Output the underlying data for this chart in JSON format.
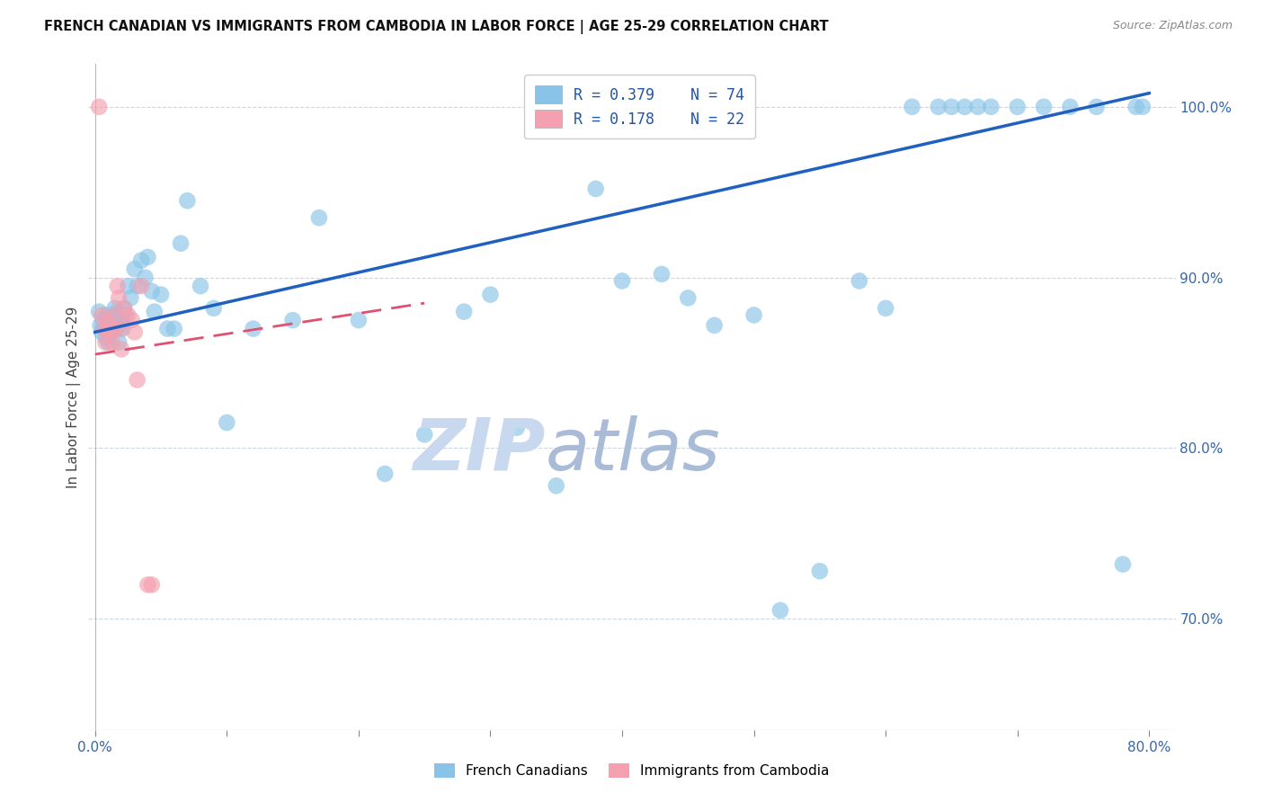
{
  "title": "FRENCH CANADIAN VS IMMIGRANTS FROM CAMBODIA IN LABOR FORCE | AGE 25-29 CORRELATION CHART",
  "source": "Source: ZipAtlas.com",
  "ylabel": "In Labor Force | Age 25-29",
  "xlim": [
    -0.005,
    0.82
  ],
  "ylim": [
    0.635,
    1.025
  ],
  "xticks": [
    0.0,
    0.1,
    0.2,
    0.3,
    0.4,
    0.5,
    0.6,
    0.7,
    0.8
  ],
  "xticklabels": [
    "0.0%",
    "",
    "",
    "",
    "",
    "",
    "",
    "",
    "80.0%"
  ],
  "yticks_right": [
    0.7,
    0.8,
    0.9,
    1.0
  ],
  "yticklabels_right": [
    "70.0%",
    "80.0%",
    "90.0%",
    "100.0%"
  ],
  "legend_blue_r": "0.379",
  "legend_blue_n": "74",
  "legend_pink_r": "0.178",
  "legend_pink_n": "22",
  "blue_color": "#89C4E8",
  "pink_color": "#F4A0B0",
  "blue_line_color": "#2060c0",
  "pink_line_color": "#e05070",
  "watermark": "ZIPatlas",
  "watermark_zip_color": "#c8d8ee",
  "watermark_atlas_color": "#aabbd8",
  "blue_x": [
    0.003,
    0.004,
    0.005,
    0.006,
    0.007,
    0.008,
    0.009,
    0.01,
    0.01,
    0.011,
    0.012,
    0.013,
    0.014,
    0.015,
    0.015,
    0.016,
    0.017,
    0.018,
    0.018,
    0.019,
    0.02,
    0.021,
    0.022,
    0.023,
    0.025,
    0.027,
    0.03,
    0.032,
    0.035,
    0.038,
    0.04,
    0.043,
    0.045,
    0.05,
    0.055,
    0.06,
    0.065,
    0.07,
    0.08,
    0.09,
    0.1,
    0.12,
    0.15,
    0.17,
    0.2,
    0.22,
    0.25,
    0.28,
    0.3,
    0.32,
    0.35,
    0.38,
    0.4,
    0.43,
    0.45,
    0.47,
    0.5,
    0.52,
    0.55,
    0.58,
    0.6,
    0.62,
    0.64,
    0.65,
    0.66,
    0.67,
    0.68,
    0.7,
    0.72,
    0.74,
    0.76,
    0.78,
    0.79,
    0.795
  ],
  "blue_y": [
    0.88,
    0.872,
    0.868,
    0.875,
    0.87,
    0.865,
    0.878,
    0.862,
    0.875,
    0.87,
    0.868,
    0.875,
    0.87,
    0.882,
    0.875,
    0.87,
    0.88,
    0.872,
    0.862,
    0.878,
    0.875,
    0.87,
    0.882,
    0.878,
    0.895,
    0.888,
    0.905,
    0.895,
    0.91,
    0.9,
    0.912,
    0.892,
    0.88,
    0.89,
    0.87,
    0.87,
    0.92,
    0.945,
    0.895,
    0.882,
    0.815,
    0.87,
    0.875,
    0.935,
    0.875,
    0.785,
    0.808,
    0.88,
    0.89,
    0.812,
    0.778,
    0.952,
    0.898,
    0.902,
    0.888,
    0.872,
    0.878,
    0.705,
    0.728,
    0.898,
    0.882,
    1.0,
    1.0,
    1.0,
    1.0,
    1.0,
    1.0,
    1.0,
    1.0,
    1.0,
    1.0,
    0.732,
    1.0,
    1.0
  ],
  "pink_x": [
    0.003,
    0.005,
    0.007,
    0.008,
    0.009,
    0.01,
    0.012,
    0.013,
    0.015,
    0.015,
    0.017,
    0.018,
    0.019,
    0.02,
    0.022,
    0.025,
    0.028,
    0.03,
    0.032,
    0.035,
    0.04,
    0.043
  ],
  "pink_y": [
    1.0,
    0.878,
    0.87,
    0.862,
    0.875,
    0.868,
    0.87,
    0.862,
    0.878,
    0.87,
    0.895,
    0.888,
    0.87,
    0.858,
    0.882,
    0.878,
    0.875,
    0.868,
    0.84,
    0.895,
    0.72,
    0.72
  ],
  "pink_line_x_start": 0.0,
  "pink_line_x_end": 0.25,
  "blue_trendline_slope": 0.175,
  "blue_trendline_intercept": 0.868,
  "pink_trendline_slope": 0.12,
  "pink_trendline_intercept": 0.855
}
